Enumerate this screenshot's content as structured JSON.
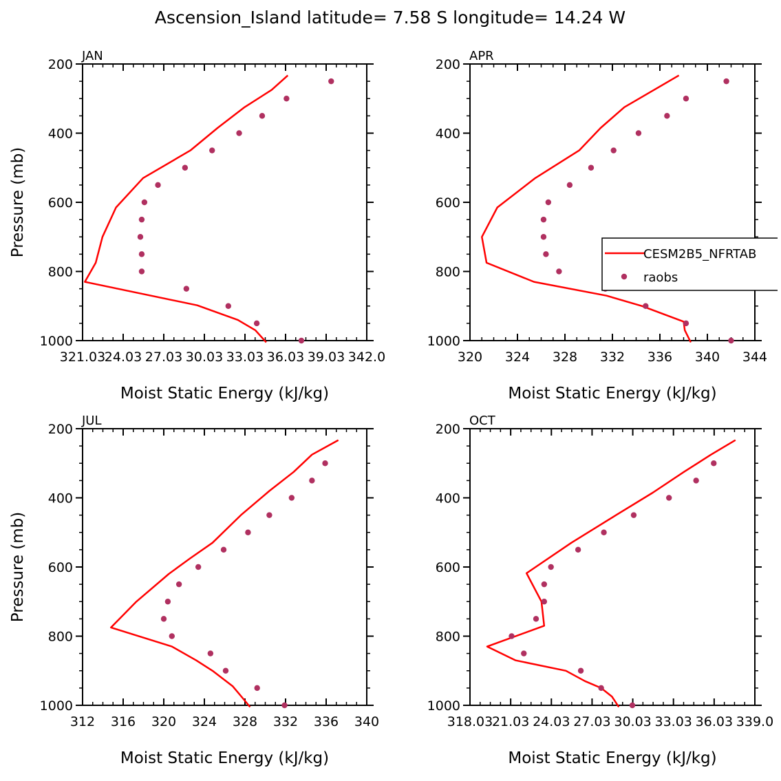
{
  "figure_title": "Ascension_Island   latitude= 7.58 S longitude= 14.24 W",
  "chart_data": [
    {
      "type": "line",
      "panel": "JAN",
      "xlabel": "Moist Static Energy (kJ/kg)",
      "ylabel": "Pressure (mb)",
      "xlim": [
        321.03,
        342.03
      ],
      "ylim": [
        200,
        1000
      ],
      "y_inverted": true,
      "x_ticks": [
        321.03,
        324.03,
        327.03,
        330.03,
        333.03,
        336.03,
        339.03,
        342.03
      ],
      "x_tick_labels": [
        "321.03",
        "24.03",
        "27.03",
        "30.03",
        "33.03",
        "36.03",
        "39.03",
        "342.0"
      ],
      "y_ticks": [
        200,
        400,
        600,
        800,
        1000
      ],
      "y_tick_labels": [
        "200",
        "400",
        "600",
        "800",
        "1000"
      ],
      "series": [
        {
          "name": "CESM2B5_NFRTAB",
          "kind": "line",
          "color": "#ff0000",
          "points": [
            [
              336.2,
              233
            ],
            [
              335.0,
              275
            ],
            [
              333.0,
              325
            ],
            [
              331.0,
              385
            ],
            [
              329.0,
              450
            ],
            [
              325.5,
              530
            ],
            [
              323.5,
              615
            ],
            [
              322.5,
              700
            ],
            [
              322.0,
              775
            ],
            [
              321.2,
              830
            ],
            [
              329.5,
              898
            ],
            [
              332.5,
              940
            ],
            [
              333.8,
              970
            ],
            [
              334.6,
              1005
            ]
          ]
        },
        {
          "name": "raobs",
          "kind": "scatter",
          "color": "#b03060",
          "points": [
            [
              339.4,
              250
            ],
            [
              336.1,
              300
            ],
            [
              334.3,
              350
            ],
            [
              332.6,
              400
            ],
            [
              330.6,
              450
            ],
            [
              328.6,
              500
            ],
            [
              326.6,
              550
            ],
            [
              325.6,
              600
            ],
            [
              325.4,
              650
            ],
            [
              325.3,
              700
            ],
            [
              325.4,
              750
            ],
            [
              325.4,
              800
            ],
            [
              328.7,
              850
            ],
            [
              331.8,
              900
            ],
            [
              333.9,
              950
            ],
            [
              337.2,
              1000
            ]
          ]
        }
      ]
    },
    {
      "type": "line",
      "panel": "APR",
      "xlabel": "Moist Static Energy (kJ/kg)",
      "ylabel": "Pressure (mb)",
      "xlim": [
        320,
        344
      ],
      "ylim": [
        200,
        1000
      ],
      "y_inverted": true,
      "x_ticks": [
        320,
        324,
        328,
        332,
        336,
        340,
        344
      ],
      "x_tick_labels": [
        "320",
        "324",
        "328",
        "332",
        "336",
        "340",
        "344"
      ],
      "y_ticks": [
        200,
        400,
        600,
        800,
        1000
      ],
      "y_tick_labels": [
        "200",
        "400",
        "600",
        "800",
        "1000"
      ],
      "legend": {
        "position": "right",
        "entries": [
          "CESM2B5_NFRTAB",
          "raobs"
        ]
      },
      "series": [
        {
          "name": "CESM2B5_NFRTAB",
          "kind": "line",
          "color": "#ff0000",
          "points": [
            [
              337.6,
              233
            ],
            [
              335.5,
              275
            ],
            [
              333.0,
              325
            ],
            [
              331.0,
              385
            ],
            [
              329.2,
              450
            ],
            [
              325.5,
              530
            ],
            [
              322.3,
              615
            ],
            [
              321.0,
              700
            ],
            [
              321.4,
              775
            ],
            [
              325.4,
              830
            ],
            [
              331.5,
              870
            ],
            [
              334.5,
              900
            ],
            [
              338.0,
              945
            ],
            [
              338.1,
              970
            ],
            [
              338.6,
              1005
            ]
          ]
        },
        {
          "name": "raobs",
          "kind": "scatter",
          "color": "#b03060",
          "points": [
            [
              341.6,
              250
            ],
            [
              338.2,
              300
            ],
            [
              336.6,
              350
            ],
            [
              334.2,
              400
            ],
            [
              332.1,
              450
            ],
            [
              330.2,
              500
            ],
            [
              328.4,
              550
            ],
            [
              326.6,
              600
            ],
            [
              326.2,
              650
            ],
            [
              326.2,
              700
            ],
            [
              326.4,
              750
            ],
            [
              327.5,
              800
            ],
            [
              331.4,
              850
            ],
            [
              334.8,
              900
            ],
            [
              338.2,
              950
            ],
            [
              342.0,
              1000
            ]
          ]
        }
      ]
    },
    {
      "type": "line",
      "panel": "JUL",
      "xlabel": "Moist Static Energy (kJ/kg)",
      "ylabel": "Pressure (mb)",
      "xlim": [
        312,
        340
      ],
      "ylim": [
        200,
        1000
      ],
      "y_inverted": true,
      "x_ticks": [
        312,
        316,
        320,
        324,
        328,
        332,
        336,
        340
      ],
      "x_tick_labels": [
        "312",
        "316",
        "320",
        "324",
        "328",
        "332",
        "336",
        "340"
      ],
      "y_ticks": [
        200,
        400,
        600,
        800,
        1000
      ],
      "y_tick_labels": [
        "200",
        "400",
        "600",
        "800",
        "1000"
      ],
      "series": [
        {
          "name": "CESM2B5_NFRTAB",
          "kind": "line",
          "color": "#ff0000",
          "points": [
            [
              337.2,
              233
            ],
            [
              334.6,
              275
            ],
            [
              332.8,
              325
            ],
            [
              330.4,
              380
            ],
            [
              327.6,
              450
            ],
            [
              324.8,
              530
            ],
            [
              322.6,
              575
            ],
            [
              320.5,
              620
            ],
            [
              317.3,
              700
            ],
            [
              314.8,
              775
            ],
            [
              320.8,
              830
            ],
            [
              323.2,
              870
            ],
            [
              324.8,
              900
            ],
            [
              326.8,
              945
            ],
            [
              327.8,
              980
            ],
            [
              328.5,
              1005
            ]
          ]
        },
        {
          "name": "raobs",
          "kind": "scatter",
          "color": "#b03060",
          "points": [
            [
              335.9,
              300
            ],
            [
              334.6,
              350
            ],
            [
              332.6,
              400
            ],
            [
              330.4,
              450
            ],
            [
              328.3,
              500
            ],
            [
              325.9,
              550
            ],
            [
              323.4,
              600
            ],
            [
              321.5,
              650
            ],
            [
              320.4,
              700
            ],
            [
              320.0,
              750
            ],
            [
              320.8,
              800
            ],
            [
              324.6,
              850
            ],
            [
              326.1,
              900
            ],
            [
              329.2,
              950
            ],
            [
              331.9,
              1000
            ]
          ]
        }
      ]
    },
    {
      "type": "line",
      "panel": "OCT",
      "xlabel": "Moist Static Energy (kJ/kg)",
      "ylabel": "Pressure (mb)",
      "xlim": [
        318.03,
        339.03
      ],
      "ylim": [
        200,
        1000
      ],
      "y_inverted": true,
      "x_ticks": [
        318.03,
        321.03,
        324.03,
        327.03,
        330.03,
        333.03,
        336.03,
        339.03
      ],
      "x_tick_labels": [
        "318.03",
        "21.03",
        "24.03",
        "27.03",
        "30.03",
        "33.03",
        "36.03",
        "339.0"
      ],
      "y_ticks": [
        200,
        400,
        600,
        800,
        1000
      ],
      "y_tick_labels": [
        "200",
        "400",
        "600",
        "800",
        "1000"
      ],
      "series": [
        {
          "name": "CESM2B5_NFRTAB",
          "kind": "line",
          "color": "#ff0000",
          "points": [
            [
              337.6,
              233
            ],
            [
              335.8,
              275
            ],
            [
              333.8,
              325
            ],
            [
              331.5,
              385
            ],
            [
              328.8,
              450
            ],
            [
              325.5,
              530
            ],
            [
              322.2,
              618
            ],
            [
              323.3,
              700
            ],
            [
              323.5,
              770
            ],
            [
              319.3,
              830
            ],
            [
              321.4,
              870
            ],
            [
              325.1,
              900
            ],
            [
              326.5,
              930
            ],
            [
              327.7,
              950
            ],
            [
              328.5,
              975
            ],
            [
              329.0,
              1005
            ]
          ]
        },
        {
          "name": "raobs",
          "kind": "scatter",
          "color": "#b03060",
          "points": [
            [
              336.0,
              300
            ],
            [
              334.7,
              350
            ],
            [
              332.7,
              400
            ],
            [
              330.1,
              450
            ],
            [
              327.9,
              500
            ],
            [
              326.0,
              550
            ],
            [
              324.0,
              600
            ],
            [
              323.5,
              650
            ],
            [
              323.5,
              700
            ],
            [
              322.9,
              750
            ],
            [
              321.1,
              800
            ],
            [
              322.0,
              850
            ],
            [
              326.2,
              900
            ],
            [
              327.7,
              950
            ],
            [
              330.0,
              1000
            ]
          ]
        }
      ]
    }
  ]
}
